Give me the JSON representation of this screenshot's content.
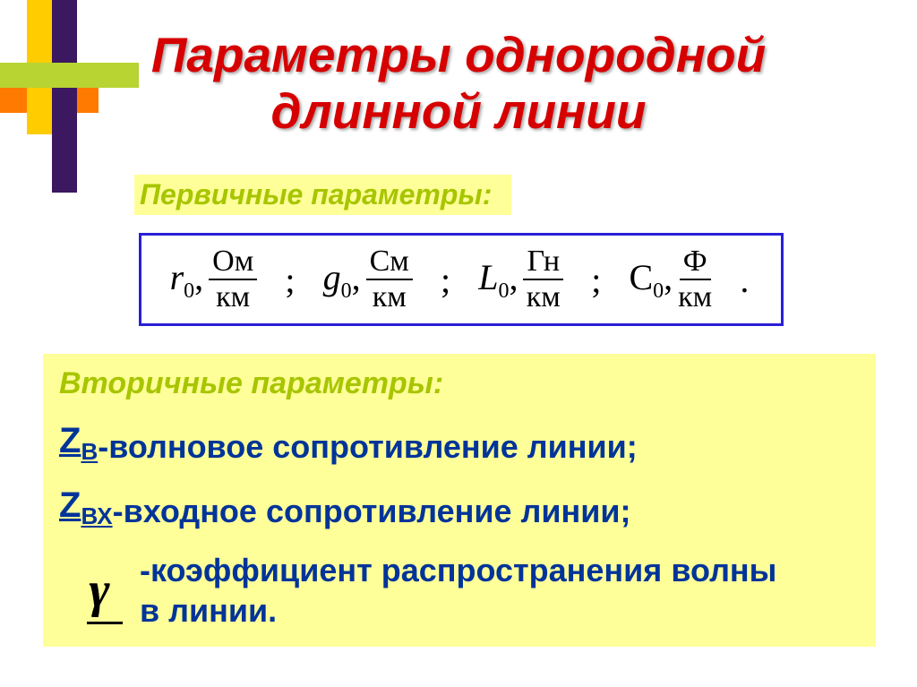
{
  "colors": {
    "title": "#d60000",
    "label_text": "#a7c500",
    "highlight_bg": "#ffff99",
    "formula_border": "#2a1fd6",
    "body_text": "#003499",
    "bar_yellow": "#ffcc00",
    "bar_purple": "#3b185f",
    "bar_green": "#b7d432",
    "bar_orange": "#ff7a00"
  },
  "title_line1": "Параметры однородной",
  "title_line2": "длинной линии",
  "primary_label": "Первичные параметры:",
  "primary_params": [
    {
      "symbol": "r",
      "sub": "0",
      "unit_num": "Ом",
      "unit_den": "км",
      "italic_upright": "italic"
    },
    {
      "symbol": "g",
      "sub": "0",
      "unit_num": "См",
      "unit_den": "км",
      "italic_upright": "italic"
    },
    {
      "symbol": "L",
      "sub": "0",
      "unit_num": "Гн",
      "unit_den": "км",
      "italic_upright": "italic"
    },
    {
      "symbol": "C",
      "sub": "0",
      "unit_num": "Ф",
      "unit_den": "км",
      "italic_upright": "upright"
    }
  ],
  "secondary_label": "Вторичные параметры:",
  "z_wave": {
    "symbol_main": "Z",
    "symbol_sub": "В",
    "text": "-волновое сопротивление линии;"
  },
  "z_in": {
    "symbol_main": "Z",
    "symbol_sub": "ВХ",
    "text": "-входное сопротивление линии;"
  },
  "gamma_symbol": "γ",
  "gamma_text_line1": "-коэффициент распространения волны",
  "gamma_text_line2": "в линии."
}
